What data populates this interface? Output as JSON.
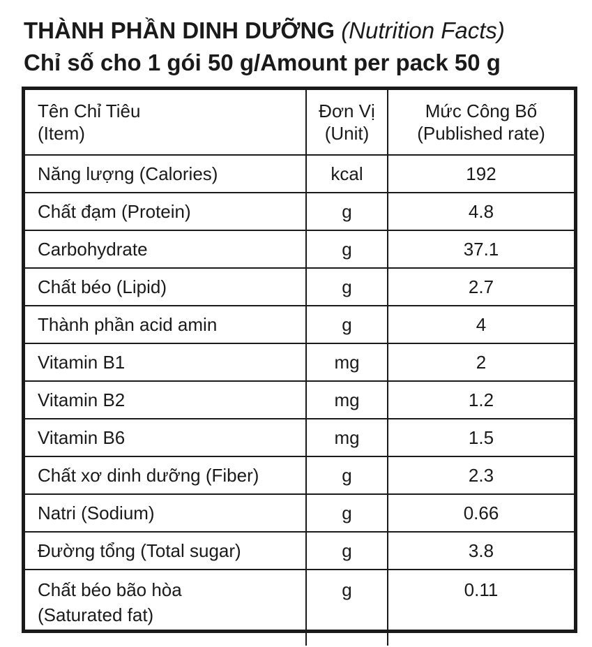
{
  "heading": {
    "title_main": "THÀNH PHẦN DINH DƯỠNG",
    "title_sub": "(Nutrition Facts)",
    "subtitle": "Chỉ số cho 1 gói 50 g/Amount per pack 50 g"
  },
  "table": {
    "headers": {
      "item_line1": "Tên Chỉ Tiêu",
      "item_line2": "(Item)",
      "unit_line1": "Đơn Vị",
      "unit_line2": "(Unit)",
      "rate_line1": "Mức Công Bố",
      "rate_line2": "(Published rate)"
    },
    "rows": [
      {
        "name": "Năng lượng (Calories)",
        "unit": "kcal",
        "value": "192"
      },
      {
        "name": "Chất đạm (Protein)",
        "unit": "g",
        "value": "4.8"
      },
      {
        "name": "Carbohydrate",
        "unit": "g",
        "value": "37.1"
      },
      {
        "name": "Chất béo (Lipid)",
        "unit": "g",
        "value": "2.7"
      },
      {
        "name": "Thành phần acid amin",
        "unit": "g",
        "value": "4"
      },
      {
        "name": "Vitamin B1",
        "unit": "mg",
        "value": "2"
      },
      {
        "name": "Vitamin B2",
        "unit": "mg",
        "value": "1.2"
      },
      {
        "name": "Vitamin B6",
        "unit": "mg",
        "value": "1.5"
      },
      {
        "name": "Chất xơ dinh dưỡng (Fiber)",
        "unit": "g",
        "value": "2.3"
      },
      {
        "name": "Natri (Sodium)",
        "unit": "g",
        "value": "0.66"
      },
      {
        "name": "Đường tổng (Total sugar)",
        "unit": "g",
        "value": "3.8"
      }
    ],
    "last_row": {
      "name_line1": "Chất béo bão hòa",
      "name_line2": "(Saturated fat)",
      "unit": "g",
      "value": "0.11"
    }
  }
}
